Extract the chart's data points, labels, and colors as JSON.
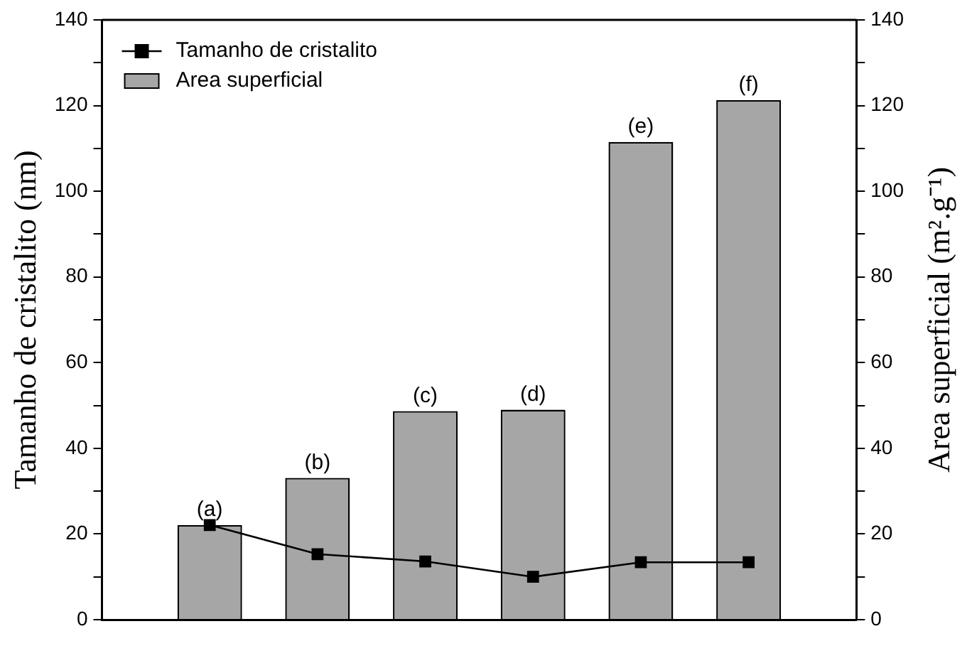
{
  "chart_data": {
    "type": "bar",
    "categories": [
      null,
      null,
      null,
      null,
      null,
      null
    ],
    "ylabel": "Tamanho de cristalito (nm)",
    "y2label": "Area superficial (m².g⁻¹)",
    "ylim": [
      0,
      140
    ],
    "yticks": [
      0,
      {
        "value": 10,
        "label": null
      },
      20,
      {
        "value": 30,
        "label": null
      },
      40,
      {
        "value": 50,
        "label": null
      },
      60,
      {
        "value": 70,
        "label": null
      },
      80,
      {
        "value": 90,
        "label": null
      },
      100,
      {
        "value": 110,
        "label": null
      },
      120,
      {
        "value": 130,
        "label": null
      },
      140
    ],
    "y2lim": [
      0,
      140
    ],
    "y2ticks": [
      0,
      {
        "value": 10,
        "label": null
      },
      20,
      {
        "value": 30,
        "label": null
      },
      40,
      {
        "value": 50,
        "label": null
      },
      60,
      {
        "value": 70,
        "label": null
      },
      80,
      {
        "value": 90,
        "label": null
      },
      100,
      {
        "value": 110,
        "label": null
      },
      120,
      {
        "value": 130,
        "label": null
      },
      140
    ],
    "series": [
      {
        "name": "Tamanho de cristalito",
        "type": "line",
        "color": "#000000",
        "values": [
          22.1,
          15.3,
          13.6,
          10.0,
          13.4,
          13.4
        ]
      },
      {
        "name": "Area superficial",
        "axis": "y2",
        "color": "#a6a6a6",
        "values": [
          22.1,
          33.1,
          48.7,
          49.0,
          111.5,
          121.3
        ],
        "value_labels": [
          "(a)",
          "(b)",
          "(c)",
          "(d)",
          "(e)",
          "(f)"
        ]
      }
    ],
    "marker": "square",
    "grid": false,
    "legend": "top left",
    "tick_labels": "y"
  }
}
